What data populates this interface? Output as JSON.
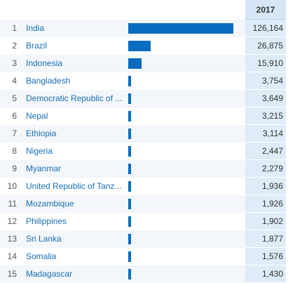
{
  "colors": {
    "bar": "#0a6cbf",
    "country_link": "#1a6fb3",
    "value_column_bg": "#deebf8",
    "header_bg": "#d6e6f6",
    "alt_row_bg": "#f3f6fa"
  },
  "chart_data": {
    "type": "bar",
    "orientation": "horizontal",
    "column_header": "2017",
    "ranks": [
      "1",
      "2",
      "3",
      "4",
      "5",
      "6",
      "7",
      "8",
      "9",
      "10",
      "11",
      "12",
      "13",
      "14",
      "15"
    ],
    "categories": [
      "India",
      "Brazil",
      "Indonesia",
      "Bangladesh",
      "Democratic Republic of ...",
      "Nepal",
      "Ethiopia",
      "Nigeria",
      "Myanmar",
      "United Republic of Tanz...",
      "Mozambique",
      "Philippines",
      "Sri Lanka",
      "Somalia",
      "Madagascar"
    ],
    "values": [
      126164,
      26875,
      15910,
      3754,
      3649,
      3215,
      3114,
      2447,
      2279,
      1936,
      1926,
      1902,
      1877,
      1576,
      1430
    ],
    "value_labels": [
      "126,164",
      "26,875",
      "15,910",
      "3,754",
      "3,649",
      "3,215",
      "3,114",
      "2,447",
      "2,279",
      "1,936",
      "1,926",
      "1,902",
      "1,877",
      "1,576",
      "1,430"
    ],
    "title": "",
    "xlabel": "",
    "ylabel": "",
    "grid": false
  }
}
